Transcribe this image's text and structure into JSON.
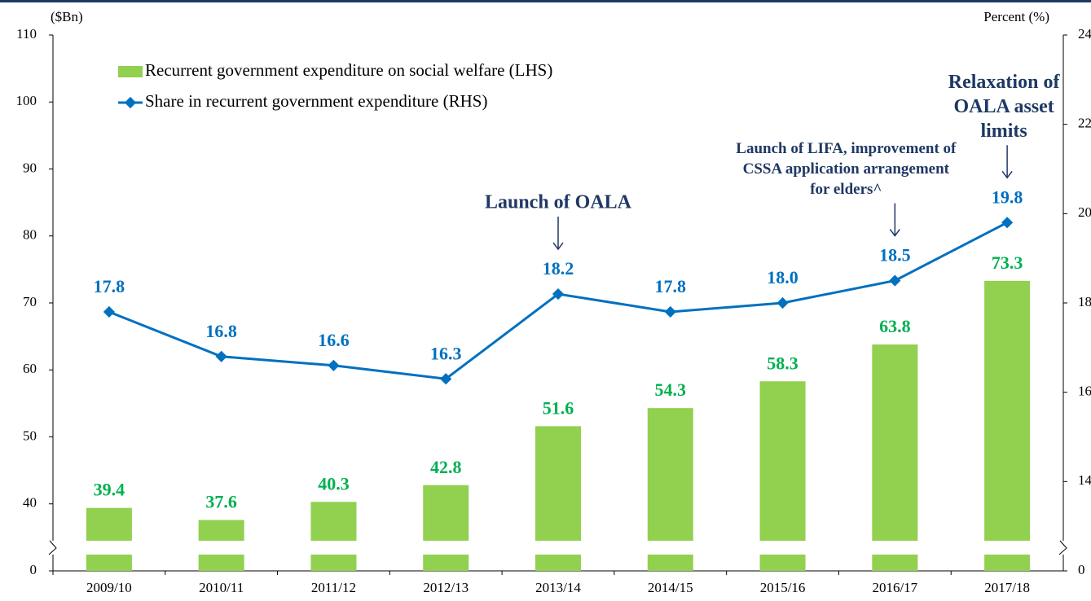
{
  "chart_data": {
    "type": "bar-line",
    "y_label": "($Bn)",
    "y2_label": "Percent (%)",
    "categories": [
      "2009/10",
      "2010/11",
      "2011/12",
      "2012/13",
      "2013/14",
      "2014/15",
      "2015/16",
      "2016/17",
      "2017/18"
    ],
    "series": [
      {
        "name": "Recurrent government expenditure on social welfare (LHS)",
        "type": "bar",
        "color": "#92d050",
        "label_color": "#00b050",
        "values": [
          39.4,
          37.6,
          40.3,
          42.8,
          51.6,
          54.3,
          58.3,
          63.8,
          73.3
        ]
      },
      {
        "name": "Share in recurrent government expenditure (RHS)",
        "type": "line",
        "axis": "y2",
        "color": "#0070c0",
        "label_color": "#0070c0",
        "values": [
          17.8,
          16.8,
          16.6,
          16.3,
          18.2,
          17.8,
          18.0,
          18.5,
          19.8
        ],
        "value_labels": [
          "17.8",
          "16.8",
          "16.6",
          "16.3",
          "18.2",
          "17.8",
          "18.0",
          "18.5",
          "19.8"
        ]
      }
    ],
    "ylim": [
      0,
      110
    ],
    "yticks": [
      0,
      40,
      50,
      60,
      70,
      80,
      90,
      100,
      110
    ],
    "y2lim": [
      0,
      24
    ],
    "y2ticks": [
      0,
      14,
      16,
      18,
      20,
      22,
      24
    ],
    "axis_break": true,
    "legend": "top-left",
    "grid": false,
    "annotations": [
      {
        "category": "2013/14",
        "lines": [
          "Launch of OALA"
        ]
      },
      {
        "category": "2016/17",
        "lines": [
          "Launch of LIFA, improvement of",
          "CSSA application arrangement",
          "for elders^"
        ]
      },
      {
        "category": "2017/18",
        "lines": [
          "Relaxation of",
          "OALA asset",
          "limits"
        ]
      }
    ]
  }
}
